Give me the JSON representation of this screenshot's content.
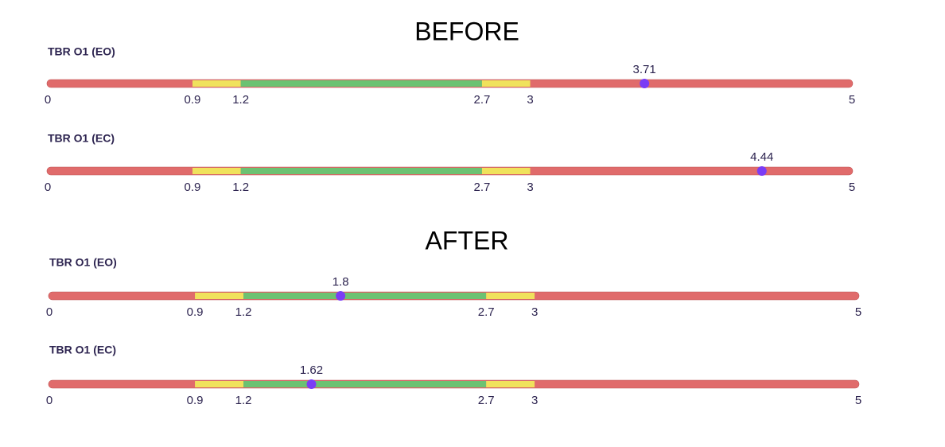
{
  "zone_colors": [
    "#e06b6b",
    "#f0e25c",
    "#6cc272",
    "#f0e25c",
    "#e06b6b"
  ],
  "marker_color": "#7b3cf5",
  "sections": [
    {
      "title": "BEFORE",
      "gauges": [
        {
          "label": "TBR O1 (EO)",
          "value": 3.71,
          "ticks": [
            0,
            0.9,
            1.2,
            2.7,
            3,
            5
          ]
        },
        {
          "label": "TBR O1 (EC)",
          "value": 4.44,
          "ticks": [
            0,
            0.9,
            1.2,
            2.7,
            3,
            5
          ]
        }
      ]
    },
    {
      "title": "AFTER",
      "gauges": [
        {
          "label": "TBR O1 (EO)",
          "value": 1.8,
          "ticks": [
            0,
            0.9,
            1.2,
            2.7,
            3,
            5
          ]
        },
        {
          "label": "TBR O1 (EC)",
          "value": 1.62,
          "ticks": [
            0,
            0.9,
            1.2,
            2.7,
            3,
            5
          ]
        }
      ]
    }
  ]
}
